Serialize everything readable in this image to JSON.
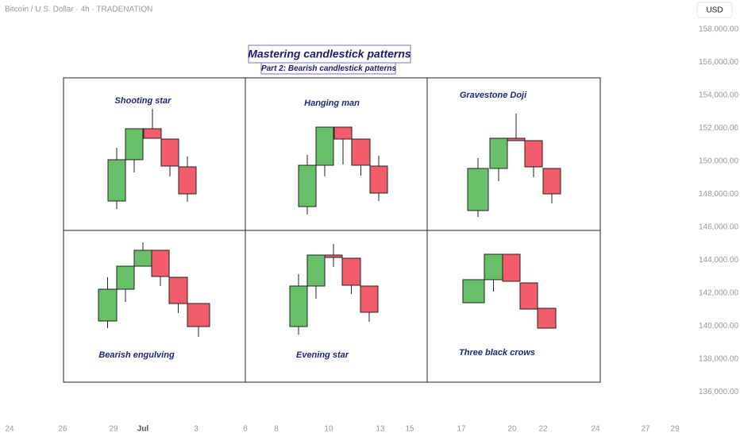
{
  "header": {
    "symbol": "Bitcoin / U.S. Dollar · 4h · TRADENATION",
    "currency": "USD"
  },
  "title": "Mastering candlestick patterns",
  "subtitle": "Part 2: Bearish candlestick patterns",
  "patterns": [
    "Shooting star",
    "Hanging man",
    "Gravestone Doji",
    "Bearish engulving",
    "Evening star",
    "Three black crows"
  ],
  "price_axis": [
    "158,000.00",
    "156,000.00",
    "154,000.00",
    "152,000.00",
    "150,000.00",
    "148,000.00",
    "146,000.00",
    "144,000.00",
    "142,000.00",
    "140,000.00",
    "138,000.00",
    "136,000.00"
  ],
  "date_axis": [
    "24",
    "26",
    "29",
    "Jul",
    "3",
    "6",
    "8",
    "10",
    "13",
    "15",
    "17",
    "20",
    "22",
    "24",
    "27",
    "29"
  ]
}
